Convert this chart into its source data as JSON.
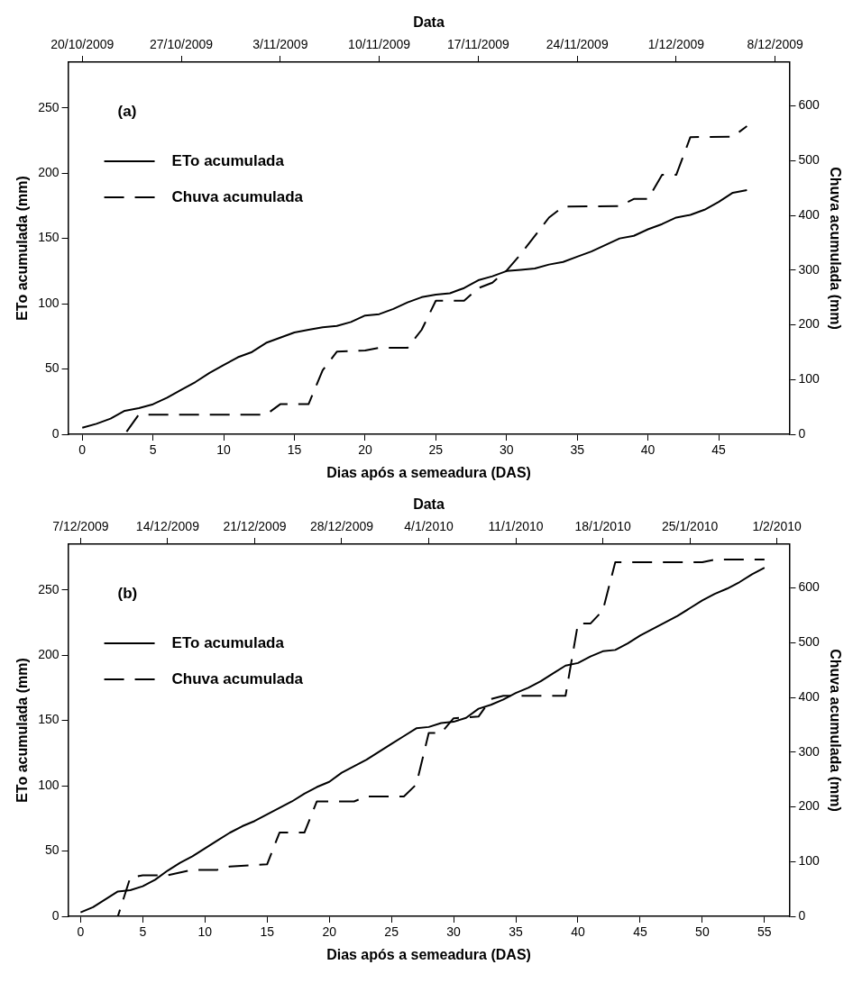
{
  "chart_data": [
    {
      "type": "line",
      "annotations": [
        "(a)"
      ],
      "xlabel": "Dias após a semeadura (DAS)",
      "x2label": "Data",
      "ylabel": "ETo acumulada (mm)",
      "y2label": "Chuva acumulada (mm)",
      "xlim": [
        -1,
        50
      ],
      "xticks": [
        0,
        5,
        10,
        15,
        20,
        25,
        30,
        35,
        40,
        45
      ],
      "x2lim": [
        "2009-10-19",
        "2009-12-09"
      ],
      "x2ticks": [
        {
          "value": "2009-10-20",
          "label": "20/10/2009"
        },
        {
          "value": "2009-10-27",
          "label": "27/10/2009"
        },
        {
          "value": "2009-11-03",
          "label": "3/11/2009"
        },
        {
          "value": "2009-11-10",
          "label": "10/11/2009"
        },
        {
          "value": "2009-11-17",
          "label": "17/11/2009"
        },
        {
          "value": "2009-11-24",
          "label": "24/11/2009"
        },
        {
          "value": "2009-12-01",
          "label": "1/12/2009"
        },
        {
          "value": "2009-12-08",
          "label": "8/12/2009"
        }
      ],
      "ylim": [
        0,
        285
      ],
      "yticks": [
        0,
        50,
        100,
        150,
        200,
        250
      ],
      "y2lim": [
        0,
        680
      ],
      "y2ticks": [
        0,
        100,
        200,
        300,
        400,
        500,
        600
      ],
      "grid": false,
      "legend": "top left",
      "marker": "none",
      "series": [
        {
          "name": "ETo acumulada",
          "color": "#000000",
          "line_style": "solid",
          "x": [
            0,
            1,
            2,
            3,
            4,
            5,
            6,
            7,
            8,
            9,
            10,
            11,
            12,
            13,
            14,
            15,
            16,
            17,
            18,
            19,
            20,
            21,
            22,
            23,
            24,
            25,
            26,
            27,
            28,
            29,
            30,
            31,
            32,
            33,
            34,
            35,
            36,
            37,
            38,
            39,
            40,
            41,
            42,
            43,
            44,
            45,
            46,
            47
          ],
          "values": [
            5,
            8,
            12,
            18,
            20,
            23,
            28,
            34,
            40,
            47,
            53,
            59,
            63,
            70,
            74,
            78,
            80,
            82,
            83,
            86,
            91,
            92,
            96,
            101,
            105,
            107,
            108,
            112,
            118,
            121,
            125,
            126,
            127,
            130,
            132,
            136,
            140,
            145,
            150,
            152,
            157,
            161,
            166,
            168,
            172,
            178,
            185,
            187
          ]
        },
        {
          "name": "Chuva acumulada",
          "color": "#000000",
          "line_style": "dashed",
          "axis": "y2",
          "x": [
            0,
            3,
            4,
            13,
            14,
            16,
            17,
            18,
            20,
            21,
            23,
            24,
            25,
            27,
            28,
            29,
            30,
            31,
            33,
            34,
            38,
            39,
            40,
            41,
            42,
            43,
            46,
            47
          ],
          "values": [
            0,
            0,
            36,
            36,
            55,
            55,
            117,
            151,
            153,
            158,
            158,
            191,
            244,
            244,
            267,
            277,
            299,
            329,
            396,
            416,
            417,
            430,
            430,
            474,
            474,
            543,
            544,
            563
          ]
        }
      ]
    },
    {
      "type": "line",
      "annotations": [
        "(b)"
      ],
      "xlabel": "Dias após a semeadura (DAS)",
      "x2label": "Data",
      "ylabel": "ETo acumulada (mm)",
      "y2label": "Chuva acumulada (mm)",
      "xlim": [
        -1,
        57
      ],
      "xticks": [
        0,
        5,
        10,
        15,
        20,
        25,
        30,
        35,
        40,
        45,
        50,
        55
      ],
      "x2lim": [
        "2009-12-06",
        "2010-02-02"
      ],
      "x2ticks": [
        {
          "value": "2009-12-07",
          "label": "7/12/2009"
        },
        {
          "value": "2009-12-14",
          "label": "14/12/2009"
        },
        {
          "value": "2009-12-21",
          "label": "21/12/2009"
        },
        {
          "value": "2009-12-28",
          "label": "28/12/2009"
        },
        {
          "value": "2010-01-04",
          "label": "4/1/2010"
        },
        {
          "value": "2010-01-11",
          "label": "11/1/2010"
        },
        {
          "value": "2010-01-18",
          "label": "18/1/2010"
        },
        {
          "value": "2010-01-25",
          "label": "25/1/2010"
        },
        {
          "value": "2010-02-01",
          "label": "1/2/2010"
        }
      ],
      "ylim": [
        0,
        285
      ],
      "yticks": [
        0,
        50,
        100,
        150,
        200,
        250
      ],
      "y2lim": [
        0,
        680
      ],
      "y2ticks": [
        0,
        100,
        200,
        300,
        400,
        500,
        600
      ],
      "grid": false,
      "legend": "top left",
      "marker": "none",
      "series": [
        {
          "name": "ETo acumulada",
          "color": "#000000",
          "line_style": "solid",
          "x": [
            0,
            1,
            2,
            3,
            4,
            5,
            6,
            7,
            8,
            9,
            10,
            11,
            12,
            13,
            14,
            15,
            16,
            17,
            18,
            19,
            20,
            21,
            22,
            23,
            24,
            25,
            26,
            27,
            28,
            29,
            30,
            31,
            32,
            33,
            34,
            35,
            36,
            37,
            38,
            39,
            40,
            41,
            42,
            43,
            44,
            45,
            46,
            47,
            48,
            49,
            50,
            51,
            52,
            53,
            54,
            55
          ],
          "values": [
            3,
            7,
            13,
            19,
            20,
            23,
            28,
            35,
            41,
            46,
            52,
            58,
            64,
            69,
            73,
            78,
            83,
            88,
            94,
            99,
            103,
            110,
            115,
            120,
            126,
            132,
            138,
            144,
            145,
            148,
            149,
            152,
            159,
            162,
            166,
            171,
            175,
            180,
            186,
            192,
            194,
            199,
            203,
            204,
            209,
            215,
            220,
            225,
            230,
            236,
            242,
            247,
            251,
            256,
            262,
            267
          ]
        },
        {
          "name": "Chuva acumulada",
          "color": "#000000",
          "line_style": "dashed",
          "axis": "y2",
          "x": [
            0,
            3,
            4,
            5,
            7,
            9,
            11,
            12,
            15,
            16,
            18,
            19,
            22,
            23,
            26,
            27,
            28,
            29,
            30,
            32,
            33,
            34,
            39,
            40,
            41,
            42,
            43,
            50,
            51,
            55
          ],
          "values": [
            0,
            0,
            71,
            75,
            75,
            85,
            85,
            91,
            95,
            153,
            153,
            210,
            210,
            219,
            219,
            241,
            335,
            335,
            362,
            365,
            397,
            403,
            403,
            535,
            535,
            559,
            647,
            647,
            652,
            652
          ]
        }
      ]
    }
  ]
}
